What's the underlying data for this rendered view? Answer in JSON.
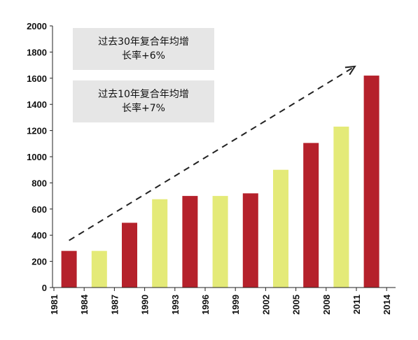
{
  "annotations": [
    {
      "line1": "过去30年复合年均增",
      "line2": "长率+6%"
    },
    {
      "line1": "过去10年复合年均增",
      "line2": "长率+7%"
    }
  ],
  "colors": {
    "dark_bar": "#b5212b",
    "light_bar": "#e4ea78",
    "axis": "#222222",
    "annotation_bg": "#e6e6e6"
  },
  "chart_data": {
    "type": "bar",
    "ylim": [
      0,
      2000
    ],
    "yticks": [
      0,
      200,
      400,
      600,
      800,
      1000,
      1200,
      1400,
      1600,
      1800,
      2000
    ],
    "xticks": [
      "1981",
      "1984",
      "1987",
      "1990",
      "1993",
      "1996",
      "1999",
      "2002",
      "2005",
      "2008",
      "2011",
      "2014"
    ],
    "bars": [
      {
        "value": 280,
        "color": "dark"
      },
      {
        "value": 280,
        "color": "light"
      },
      {
        "value": 495,
        "color": "dark"
      },
      {
        "value": 675,
        "color": "light"
      },
      {
        "value": 700,
        "color": "dark"
      },
      {
        "value": 700,
        "color": "light"
      },
      {
        "value": 720,
        "color": "dark"
      },
      {
        "value": 900,
        "color": "light"
      },
      {
        "value": 1105,
        "color": "dark"
      },
      {
        "value": 1230,
        "color": "light"
      },
      {
        "value": 1620,
        "color": "dark"
      }
    ],
    "trend_arrow": {
      "style": "dashed",
      "from_value": 360,
      "to_value": 1690,
      "from_bar": 0,
      "to_bar": 10
    },
    "grid": false,
    "legend": "none"
  }
}
